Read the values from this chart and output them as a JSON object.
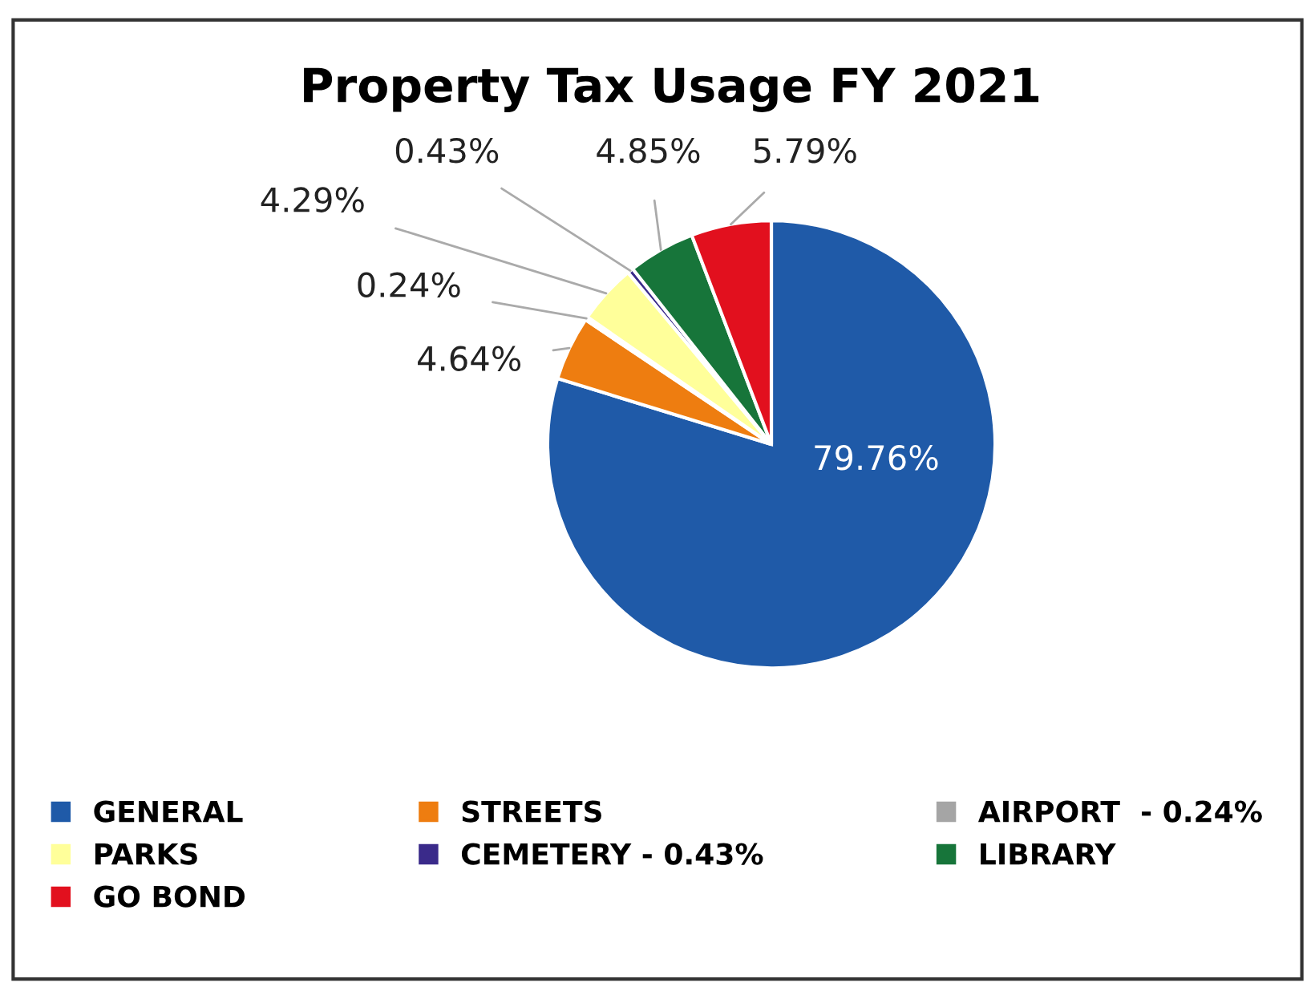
{
  "chart_data": {
    "type": "pie",
    "title": "Property Tax Usage FY 2021",
    "categories": [
      "GENERAL",
      "STREETS",
      "AIRPORT  - 0.24%",
      "PARKS",
      "CEMETERY - 0.43%",
      "LIBRARY",
      "GO BOND"
    ],
    "values": [
      79.76,
      4.64,
      0.24,
      4.29,
      0.43,
      4.85,
      5.79
    ],
    "value_labels": [
      "79.76%",
      "4.64%",
      "0.24%",
      "4.29%",
      "0.43%",
      "4.85%",
      "5.79%"
    ],
    "colors": [
      "#1f5aa8",
      "#ee7d10",
      "#a5a5a5",
      "#ffff9a",
      "#3a2a8a",
      "#17753a",
      "#e2101e"
    ],
    "legend": "bottom"
  }
}
